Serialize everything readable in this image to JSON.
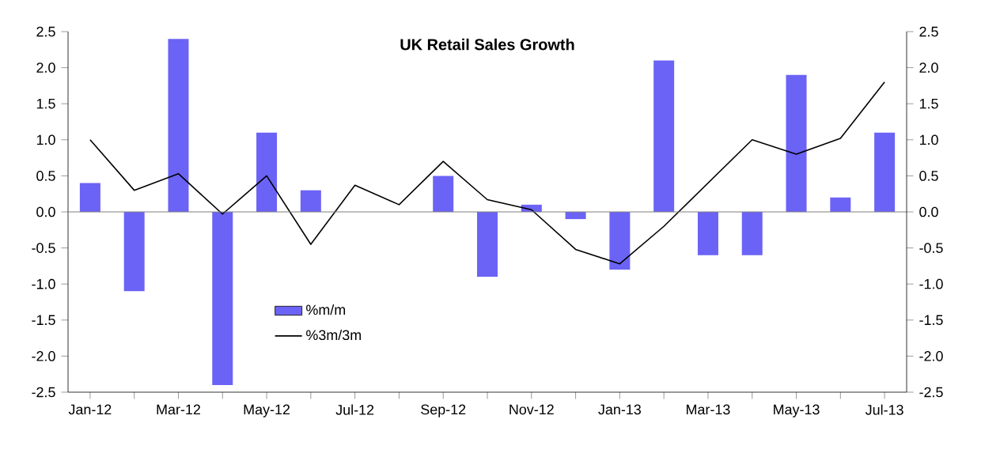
{
  "chart_data": {
    "type": "bar",
    "title": "UK Retail Sales Growth",
    "categories": [
      "Jan-12",
      null,
      "Mar-12",
      null,
      "May-12",
      null,
      "Jul-12",
      null,
      "Sep-12",
      null,
      "Nov-12",
      null,
      "Jan-13",
      null,
      "Mar-13",
      null,
      "May-13",
      null,
      "Jul-13"
    ],
    "series": [
      {
        "name": "%m/m",
        "color": "#6b63f5",
        "values": [
          0.4,
          -1.1,
          2.4,
          -2.4,
          1.1,
          0.3,
          0,
          0,
          0.5,
          -0.9,
          0.1,
          -0.1,
          -0.8,
          2.1,
          -0.6,
          -0.6,
          1.9,
          0.2,
          1.1
        ]
      },
      {
        "name": "%3m/3m",
        "type": "line",
        "color": "#000000",
        "values": [
          1.0,
          0.3,
          0.53,
          -0.03,
          0.5,
          -0.45,
          0.37,
          0.1,
          0.7,
          0.17,
          0.03,
          -0.52,
          -0.72,
          -0.2,
          0.4,
          1.0,
          0.8,
          1.02,
          1.8
        ]
      }
    ],
    "ylim": [
      -2.5,
      2.5
    ],
    "yticks": [
      -2.5,
      {
        "value": -2.0,
        "label": "-2.0"
      },
      -1.5,
      {
        "value": -1.0,
        "label": "-1.0"
      },
      -0.5,
      {
        "value": 0,
        "label": "0.0"
      },
      0.5,
      {
        "value": 1.0,
        "label": "1.0"
      },
      1.5,
      {
        "value": 2.0,
        "label": "2.0"
      },
      2.5
    ],
    "y2lim": [
      -2.5,
      2.5
    ],
    "y2ticks": [
      -2.5,
      {
        "value": -2.0,
        "label": "-2.0"
      },
      -1.5,
      {
        "value": -1.0,
        "label": "-1.0"
      },
      -0.5,
      {
        "value": 0,
        "label": "0.0"
      },
      0.5,
      {
        "value": 1.0,
        "label": "1.0"
      },
      1.5,
      {
        "value": 2.0,
        "label": "2.0"
      },
      2.5
    ],
    "legend": "bottom"
  }
}
